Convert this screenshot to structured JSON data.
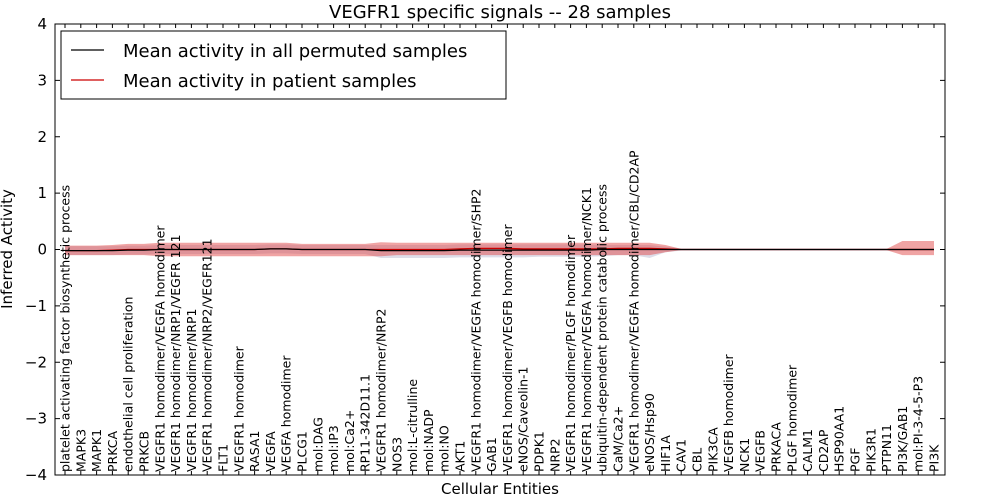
{
  "chart_data": {
    "type": "line",
    "title": "VEGFR1 specific signals -- 28 samples",
    "xlabel": "Cellular Entities",
    "ylabel": "Inferred Activity",
    "ylim": [
      -4,
      4
    ],
    "yticks": [
      -4,
      -3,
      -2,
      -1,
      0,
      1,
      2,
      3,
      4
    ],
    "ytick_labels": [
      "−4",
      "−3",
      "−2",
      "−1",
      "0",
      "1",
      "2",
      "3",
      "4"
    ],
    "legend_position": "top-left",
    "categories": [
      "platelet activating factor biosynthetic process",
      "MAPK3",
      "MAPK1",
      "PRKCA",
      "endothelial cell proliferation",
      "PRKCB",
      "VEGFR1 homodimer/VEGFA homodimer",
      "VEGFR1 homodimer/NRP1/VEGFR 121",
      "VEGFR1 homodimer/NRP1",
      "VEGFR1 homodimer/NRP2/VEGFR121",
      "FLT1",
      "VEGFR1 homodimer",
      "RASA1",
      "VEGFA",
      "VEGFA homodimer",
      "PLCG1",
      "mol:DAG",
      "mol:IP3",
      "mol:Ca2+",
      "RP11-342D11.1",
      "VEGFR1 homodimer/NRP2",
      "NOS3",
      "mol:L-citrulline",
      "mol:NADP",
      "mol:NO",
      "AKT1",
      "VEGFR1 homodimer/VEGFA homodimer/SHP2",
      "GAB1",
      "VEGFR1 homodimer/VEGFB homodimer",
      "eNOS/Caveolin-1",
      "PDPK1",
      "NRP2",
      "VEGFR1 homodimer/PLGF homodimer",
      "VEGFR1 homodimer/VEGFA homodimer/NCK1",
      "ubiquitin-dependent protein catabolic process",
      "CaM/Ca2+",
      "VEGFR1 homodimer/VEGFA homodimer/CBL/CD2AP",
      "eNOS/Hsp90",
      "HIF1A",
      "CAV1",
      "CBL",
      "PIK3CA",
      "VEGFB homodimer",
      "NCK1",
      "VEGFB",
      "PRKACA",
      "PLGF homodimer",
      "CALM1",
      "CD2AP",
      "HSP90AA1",
      "PGF",
      "PIK3R1",
      "PTPN11",
      "PI3K/GAB1",
      "mol:PI-3-4-5-P3",
      "PI3K"
    ],
    "series": [
      {
        "name": "Mean activity in all permuted samples",
        "color": "#000000",
        "values": [
          -0.02,
          -0.02,
          -0.02,
          -0.02,
          -0.01,
          -0.01,
          0.0,
          0.0,
          0.0,
          0.0,
          0.0,
          0.0,
          0.0,
          0.01,
          0.01,
          0.0,
          0.0,
          0.0,
          0.0,
          0.0,
          -0.02,
          -0.02,
          -0.02,
          -0.02,
          -0.02,
          -0.01,
          -0.01,
          -0.01,
          -0.01,
          -0.01,
          -0.01,
          -0.01,
          -0.01,
          -0.01,
          0.0,
          0.0,
          0.0,
          0.0,
          0.0,
          0.0,
          0.0,
          0.0,
          0.0,
          0.0,
          0.0,
          0.0,
          0.0,
          0.0,
          0.0,
          0.0,
          0.0,
          0.0,
          0.0,
          0.0,
          0.0,
          0.0
        ],
        "lower": [
          -0.1,
          -0.1,
          -0.1,
          -0.1,
          -0.09,
          -0.09,
          -0.08,
          -0.08,
          -0.08,
          -0.08,
          -0.08,
          -0.08,
          -0.08,
          -0.07,
          -0.07,
          -0.08,
          -0.08,
          -0.08,
          -0.08,
          -0.08,
          -0.15,
          -0.15,
          -0.15,
          -0.15,
          -0.15,
          -0.14,
          -0.14,
          -0.14,
          -0.14,
          -0.14,
          -0.13,
          -0.13,
          -0.13,
          -0.13,
          -0.12,
          -0.1,
          -0.1,
          -0.15,
          -0.05,
          -0.02,
          -0.02,
          -0.02,
          -0.02,
          -0.02,
          -0.02,
          -0.02,
          -0.02,
          -0.02,
          -0.02,
          -0.02,
          -0.02,
          -0.02,
          -0.02,
          -0.02,
          -0.02,
          -0.02
        ],
        "upper": [
          0.06,
          0.06,
          0.06,
          0.06,
          0.07,
          0.07,
          0.08,
          0.08,
          0.08,
          0.08,
          0.08,
          0.08,
          0.08,
          0.09,
          0.09,
          0.08,
          0.08,
          0.08,
          0.08,
          0.08,
          0.08,
          0.08,
          0.08,
          0.08,
          0.08,
          0.09,
          0.09,
          0.09,
          0.09,
          0.09,
          0.09,
          0.09,
          0.09,
          0.09,
          0.08,
          0.08,
          0.08,
          0.08,
          0.05,
          0.02,
          0.02,
          0.02,
          0.02,
          0.02,
          0.02,
          0.02,
          0.02,
          0.02,
          0.02,
          0.02,
          0.02,
          0.02,
          0.02,
          0.02,
          0.02,
          0.02
        ]
      },
      {
        "name": "Mean activity in patient samples",
        "color": "#cc0000",
        "values": [
          -0.02,
          -0.02,
          -0.02,
          -0.01,
          0.0,
          0.0,
          0.0,
          0.0,
          0.0,
          0.0,
          0.0,
          0.0,
          0.0,
          0.01,
          0.01,
          0.0,
          0.0,
          0.0,
          0.0,
          0.0,
          0.0,
          0.0,
          0.0,
          0.0,
          0.0,
          0.01,
          0.02,
          0.02,
          0.02,
          0.01,
          0.01,
          0.01,
          0.01,
          0.01,
          0.01,
          0.02,
          0.02,
          0.02,
          0.01,
          0.0,
          0.0,
          0.0,
          0.0,
          0.0,
          0.0,
          0.0,
          0.0,
          0.0,
          0.0,
          0.0,
          0.0,
          0.0,
          0.0,
          0.0,
          0.0,
          0.0
        ],
        "lower": [
          -0.1,
          -0.1,
          -0.1,
          -0.1,
          -0.1,
          -0.1,
          -0.12,
          -0.12,
          -0.12,
          -0.12,
          -0.12,
          -0.12,
          -0.12,
          -0.12,
          -0.12,
          -0.12,
          -0.12,
          -0.12,
          -0.12,
          -0.12,
          -0.12,
          -0.1,
          -0.1,
          -0.1,
          -0.1,
          -0.1,
          -0.1,
          -0.1,
          -0.1,
          -0.1,
          -0.1,
          -0.1,
          -0.1,
          -0.1,
          -0.1,
          -0.1,
          -0.1,
          -0.1,
          -0.05,
          -0.01,
          -0.01,
          -0.01,
          -0.01,
          -0.01,
          -0.01,
          -0.01,
          -0.01,
          -0.01,
          -0.01,
          -0.01,
          -0.01,
          -0.01,
          -0.01,
          -0.1,
          -0.1,
          -0.1
        ],
        "upper": [
          0.07,
          0.07,
          0.07,
          0.08,
          0.1,
          0.1,
          0.12,
          0.12,
          0.12,
          0.12,
          0.12,
          0.12,
          0.12,
          0.12,
          0.12,
          0.1,
          0.1,
          0.1,
          0.1,
          0.1,
          0.13,
          0.12,
          0.12,
          0.12,
          0.12,
          0.12,
          0.12,
          0.12,
          0.12,
          0.12,
          0.12,
          0.12,
          0.12,
          0.12,
          0.12,
          0.12,
          0.12,
          0.12,
          0.08,
          0.01,
          0.01,
          0.01,
          0.01,
          0.01,
          0.01,
          0.01,
          0.01,
          0.01,
          0.01,
          0.01,
          0.01,
          0.01,
          0.01,
          0.15,
          0.15,
          0.15
        ]
      }
    ]
  }
}
